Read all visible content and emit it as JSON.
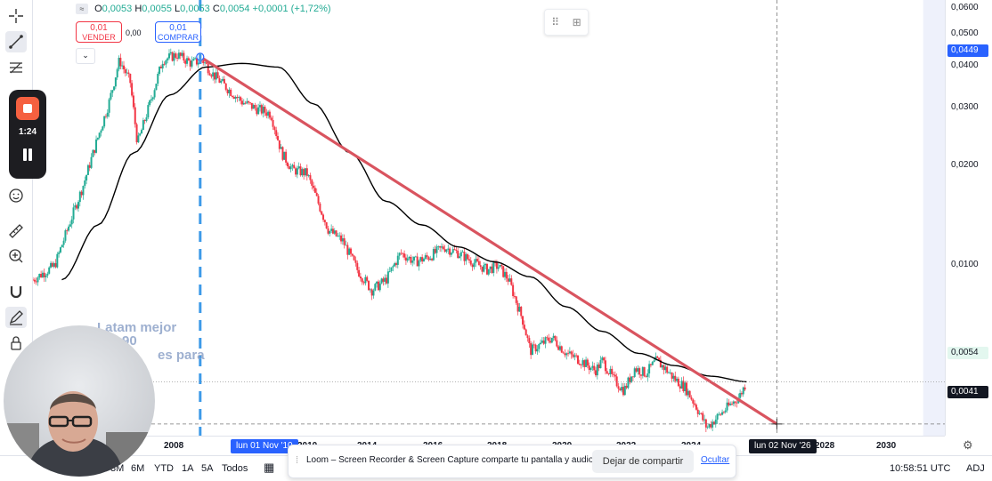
{
  "legend": {
    "symbol_icon": "wave-icon",
    "o_label": "O",
    "o_value": "0,0053",
    "h_label": "H",
    "h_value": "0,0055",
    "l_label": "L",
    "l_value": "0,0053",
    "c_label": "C",
    "c_value": "0,0054",
    "change": "+0,0001 (+1,72%)"
  },
  "trade": {
    "sell_price": "0,01",
    "sell_label": "VENDER",
    "spread": "0,00",
    "buy_price": "0,01",
    "buy_label": "COMPRAR",
    "collapse_icon": "chevron-down-icon"
  },
  "price_axis": {
    "labels": [
      "0,0600",
      "0,0500",
      "0,0400",
      "0,0300",
      "0,0200",
      "0,0100"
    ],
    "current_tag": "0,0449",
    "last_price_tag": "0,0054",
    "crosshair_tag": "0,0041"
  },
  "time_axis": {
    "labels": [
      "2008",
      "2010",
      "2014",
      "2016",
      "2018",
      "2020",
      "2022",
      "2024",
      "2028",
      "2030"
    ],
    "marker_tag": "lun 01 Nov '10",
    "crosshair_tag": "lun 02 Nov '26"
  },
  "range_buttons": [
    "3M",
    "6M",
    "YTD",
    "1A",
    "5A",
    "Todos"
  ],
  "clock": "10:58:51 UTC",
  "adj_label": "ADJ",
  "loom": {
    "timer": "1:24",
    "share_message": "Loom – Screen Recorder & Screen Capture comparte tu pantalla y audio.",
    "stop_button": "Dejar de compartir",
    "hide_link": "Ocultar"
  },
  "overlay_text": {
    "line1": "Latam mejor",
    "line2": "90",
    "line3": "es para"
  },
  "colors": {
    "accent": "#2962ff",
    "trend_line": "#d9545f",
    "moving_average": "#000000",
    "vertical_marker": "#3d9ae8",
    "candle_up": "#22ab94",
    "candle_down": "#f23645",
    "loom_record": "#f56040"
  },
  "chart_data": {
    "type": "line",
    "title": "",
    "xlabel": "",
    "ylabel": "",
    "y_scale": "log",
    "ylim": [
      0.0038,
      0.065
    ],
    "xlim": [
      2006.2,
      2031.5
    ],
    "grid": false,
    "legend_position": "none",
    "series": [
      {
        "name": "",
        "x": [
          2006.2,
          2006.8,
          2007.2,
          2007.6,
          2008.0,
          2008.3,
          2008.6,
          2008.9,
          2009.1,
          2009.4,
          2009.8,
          2010.2,
          2010.6,
          2010.9,
          2011.2,
          2011.6,
          2012.0,
          2012.4,
          2012.8,
          2013.1,
          2013.4,
          2013.8,
          2014.1,
          2014.4,
          2014.8,
          2015.2,
          2015.6,
          2016.0,
          2016.4,
          2016.8,
          2017.2,
          2017.6,
          2018.0,
          2018.4,
          2018.8,
          2019.1,
          2019.4,
          2019.8,
          2020.0,
          2020.2,
          2020.6,
          2021.0,
          2021.4,
          2021.8,
          2022.0,
          2022.3,
          2022.6,
          2022.9,
          2023.2,
          2023.5,
          2023.8,
          2024.0,
          2024.3,
          2024.6,
          2024.9,
          2025.2,
          2025.5,
          2025.8,
          2026.0
        ],
        "values": [
          0.0105,
          0.0115,
          0.015,
          0.0195,
          0.0265,
          0.033,
          0.044,
          0.038,
          0.0255,
          0.032,
          0.044,
          0.0455,
          0.043,
          0.044,
          0.04,
          0.0365,
          0.0335,
          0.032,
          0.031,
          0.024,
          0.0215,
          0.021,
          0.0175,
          0.0145,
          0.0135,
          0.0112,
          0.0098,
          0.0105,
          0.0125,
          0.0118,
          0.0122,
          0.013,
          0.0125,
          0.0118,
          0.0112,
          0.0115,
          0.0105,
          0.008,
          0.0066,
          0.0068,
          0.0072,
          0.0065,
          0.0062,
          0.0058,
          0.0062,
          0.0055,
          0.0051,
          0.0059,
          0.0057,
          0.0062,
          0.0058,
          0.0055,
          0.0052,
          0.0046,
          0.004,
          0.0043,
          0.0046,
          0.0049,
          0.0054
        ]
      },
      {
        "name": "",
        "x": [
          2007.0,
          2008.0,
          2009.0,
          2010.0,
          2011.0,
          2012.0,
          2013.0,
          2014.0,
          2015.0,
          2016.0,
          2017.0,
          2018.0,
          2019.0,
          2020.0,
          2021.0,
          2022.0,
          2023.0,
          2024.0,
          2025.0,
          2026.0
        ],
        "values": [
          0.0105,
          0.015,
          0.024,
          0.035,
          0.042,
          0.043,
          0.042,
          0.033,
          0.024,
          0.0175,
          0.015,
          0.013,
          0.0118,
          0.0107,
          0.0088,
          0.0075,
          0.0065,
          0.006,
          0.0056,
          0.0054
        ]
      }
    ],
    "annotations": [
      {
        "type": "trend_line",
        "from": [
          2010.84,
          0.0449
        ],
        "to": [
          2026.84,
          0.0041
        ]
      },
      {
        "type": "vertical_line",
        "x": 2010.84,
        "label": "lun 01 Nov '10"
      },
      {
        "type": "horizontal_line",
        "y": 0.0041,
        "label": "0,0041"
      },
      {
        "type": "horizontal_line",
        "y": 0.0054,
        "label": "0,0054"
      }
    ]
  }
}
